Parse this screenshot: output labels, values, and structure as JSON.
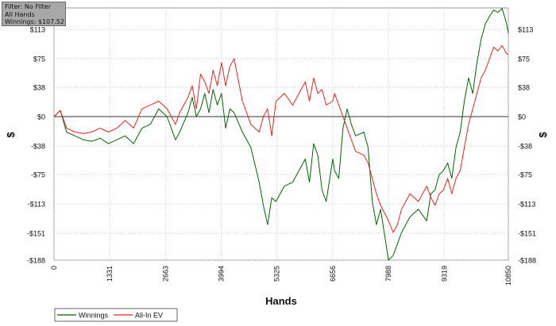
{
  "info_box": {
    "filter": "Filter: No Filter",
    "hands": "All Hands",
    "winnings": "Winnings: $107.52"
  },
  "chart_data": {
    "type": "line",
    "xlabel": "Hands",
    "ylabel": "$",
    "ylabel_right": "$",
    "xlim": [
      0,
      10850
    ],
    "ylim": [
      -188,
      150
    ],
    "x_ticks": [
      0,
      1331,
      2663,
      3994,
      5325,
      6656,
      7988,
      9319,
      10850
    ],
    "y_ticks": [
      113,
      75,
      38,
      0,
      -38,
      -75,
      -113,
      -151,
      -188
    ],
    "y_tick_labels": [
      "$113",
      "$75",
      "$38",
      "$0",
      "-$38",
      "-$75",
      "-$113",
      "-$151",
      "-$188"
    ],
    "grid": true,
    "legend_position": "bottom-left",
    "series": [
      {
        "name": "Winnings",
        "color": "#006600",
        "x": [
          0,
          150,
          300,
          500,
          700,
          900,
          1100,
          1300,
          1500,
          1700,
          1900,
          2100,
          2300,
          2500,
          2700,
          2900,
          3000,
          3200,
          3300,
          3400,
          3500,
          3600,
          3700,
          3800,
          3900,
          4000,
          4100,
          4200,
          4300,
          4500,
          4700,
          4900,
          5000,
          5100,
          5200,
          5300,
          5500,
          5700,
          5900,
          6000,
          6100,
          6200,
          6300,
          6400,
          6500,
          6656,
          6700,
          6800,
          6900,
          7000,
          7100,
          7200,
          7400,
          7500,
          7600,
          7700,
          7800,
          7988,
          8100,
          8200,
          8300,
          8400,
          8500,
          8700,
          8900,
          9000,
          9100,
          9200,
          9300,
          9400,
          9500,
          9600,
          9700,
          9800,
          9900,
          10000,
          10100,
          10200,
          10300,
          10400,
          10500,
          10600,
          10700,
          10800,
          10850
        ],
        "values": [
          0,
          8,
          -20,
          -25,
          -30,
          -32,
          -28,
          -35,
          -30,
          -25,
          -35,
          -15,
          -10,
          10,
          0,
          -30,
          -20,
          5,
          25,
          0,
          10,
          30,
          5,
          35,
          15,
          30,
          -15,
          10,
          5,
          -20,
          -40,
          -85,
          -115,
          -140,
          -105,
          -110,
          -90,
          -85,
          -65,
          -55,
          -85,
          -35,
          -50,
          -95,
          -110,
          -55,
          -70,
          -80,
          -15,
          10,
          -10,
          -25,
          -20,
          -40,
          -110,
          -140,
          -120,
          -188,
          -180,
          -165,
          -150,
          -140,
          -130,
          -120,
          -135,
          -100,
          -95,
          -75,
          -70,
          -60,
          -80,
          -40,
          -20,
          20,
          50,
          30,
          70,
          100,
          120,
          130,
          138,
          135,
          140,
          122,
          108
        ]
      },
      {
        "name": "All-In EV",
        "color": "#ee2222",
        "x": [
          0,
          150,
          300,
          500,
          700,
          900,
          1100,
          1300,
          1500,
          1700,
          1900,
          2100,
          2300,
          2500,
          2700,
          2900,
          3000,
          3200,
          3300,
          3400,
          3500,
          3600,
          3700,
          3800,
          3900,
          4000,
          4100,
          4200,
          4300,
          4500,
          4700,
          4900,
          5000,
          5100,
          5200,
          5300,
          5500,
          5700,
          5900,
          6000,
          6100,
          6200,
          6300,
          6400,
          6500,
          6656,
          6700,
          6800,
          6900,
          7000,
          7100,
          7200,
          7400,
          7500,
          7600,
          7700,
          7800,
          7988,
          8100,
          8200,
          8300,
          8400,
          8500,
          8700,
          8900,
          9000,
          9100,
          9200,
          9300,
          9400,
          9500,
          9600,
          9700,
          9800,
          9900,
          10000,
          10100,
          10200,
          10300,
          10400,
          10500,
          10600,
          10700,
          10800,
          10850
        ],
        "values": [
          0,
          8,
          -15,
          -20,
          -22,
          -20,
          -15,
          -20,
          -15,
          -5,
          -15,
          10,
          15,
          20,
          10,
          -10,
          5,
          25,
          40,
          10,
          55,
          45,
          30,
          60,
          40,
          70,
          40,
          65,
          75,
          20,
          -10,
          -20,
          0,
          10,
          -25,
          20,
          30,
          15,
          35,
          45,
          20,
          50,
          30,
          35,
          15,
          20,
          30,
          15,
          0,
          -15,
          -30,
          -45,
          -50,
          -60,
          -80,
          -100,
          -115,
          -135,
          -150,
          -140,
          -120,
          -110,
          -100,
          -110,
          -90,
          -105,
          -115,
          -100,
          -95,
          -80,
          -100,
          -80,
          -70,
          -40,
          -10,
          10,
          30,
          50,
          60,
          75,
          90,
          85,
          92,
          82,
          80
        ]
      }
    ]
  }
}
